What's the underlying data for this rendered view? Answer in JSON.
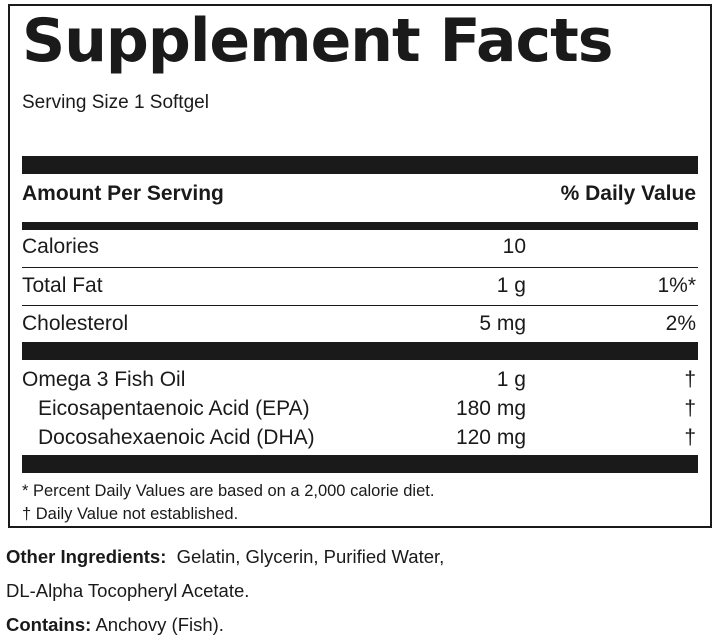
{
  "title": "Supplement Facts",
  "serving_size": "Serving Size 1 Softgel",
  "header": {
    "amount": "Amount Per Serving",
    "daily_value": "% Daily Value"
  },
  "nutrients": [
    {
      "name": "Calories",
      "amount": "10",
      "dv": ""
    },
    {
      "name": "Total Fat",
      "amount": "1 g",
      "dv": "1%*"
    },
    {
      "name": "Cholesterol",
      "amount": "5 mg",
      "dv": "2%"
    }
  ],
  "actives": [
    {
      "name": "Omega 3 Fish Oil",
      "amount": "1 g",
      "dv": "†"
    },
    {
      "name": "Eicosapentaenoic Acid (EPA)",
      "amount": "180 mg",
      "dv": "†"
    },
    {
      "name": "Docosahexaenoic Acid (DHA)",
      "amount": "120 mg",
      "dv": "†"
    }
  ],
  "footnotes": [
    "* Percent Daily Values are based on a 2,000 calorie diet.",
    "† Daily Value not established."
  ],
  "other_ingredients": {
    "label": "Other Ingredients:",
    "line1": "Gelatin, Glycerin, Purified Water,",
    "line2": "DL-Alpha Tocopheryl Acetate."
  },
  "contains": {
    "label": "Contains:",
    "value": "Anchovy (Fish)."
  }
}
